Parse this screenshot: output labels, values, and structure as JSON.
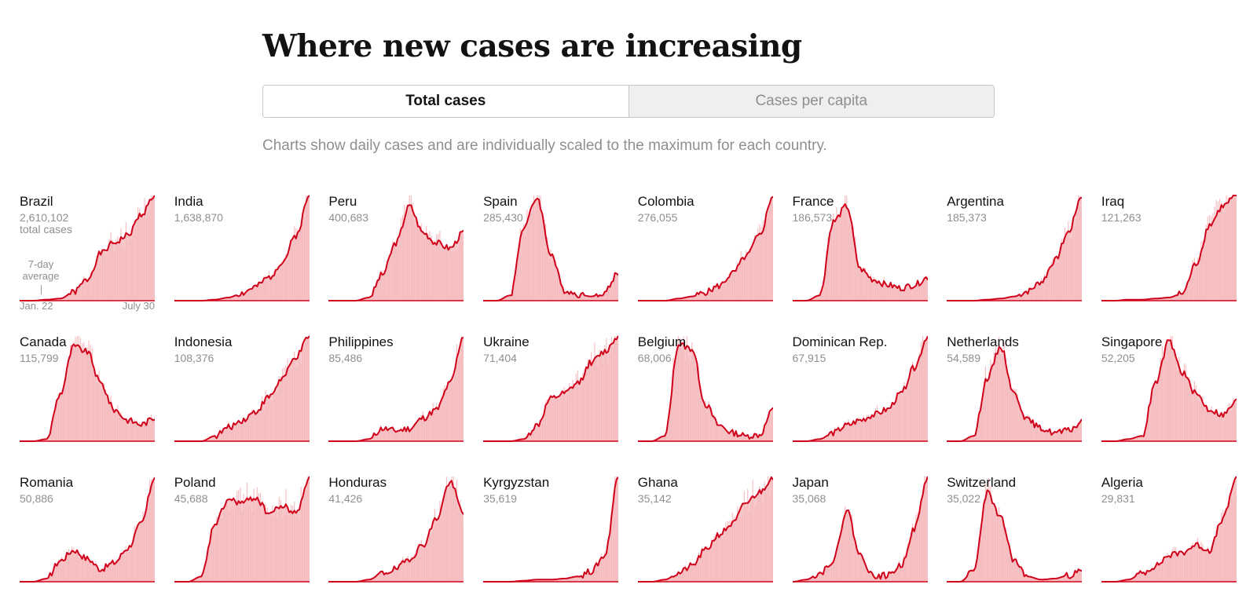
{
  "header": {
    "title": "Where new cases are increasing",
    "subtitle": "Charts show daily cases and are individually scaled to the maximum for each country."
  },
  "toggle": {
    "total_label": "Total cases",
    "per_capita_label": "Cases per capita"
  },
  "legend": {
    "total_cases_label": "total cases",
    "avg_label": "7-day average",
    "x_start": "Jan. 22",
    "x_end": "July 30"
  },
  "colors": {
    "line": "#d0021b",
    "fill": "#f4b6b8",
    "bar": "#f08d92"
  },
  "chart_data": {
    "type": "area",
    "title": "Where new cases are increasing",
    "description_units": "daily new cases, 7-day average, normalized 0-1 to each country's maximum",
    "x_range": [
      "Jan. 22",
      "July 30"
    ],
    "x": [
      0.0,
      0.1,
      0.2,
      0.3,
      0.4,
      0.5,
      0.6,
      0.7,
      0.8,
      0.9,
      1.0
    ],
    "series": [
      {
        "name": "Brazil",
        "total": "2,610,102",
        "values": [
          0,
          0,
          0.01,
          0.02,
          0.08,
          0.2,
          0.45,
          0.55,
          0.62,
          0.82,
          1.0
        ]
      },
      {
        "name": "India",
        "total": "1,638,870",
        "values": [
          0,
          0,
          0,
          0.01,
          0.03,
          0.07,
          0.13,
          0.22,
          0.37,
          0.62,
          1.0
        ]
      },
      {
        "name": "Peru",
        "total": "400,683",
        "values": [
          0,
          0,
          0,
          0.03,
          0.25,
          0.55,
          0.9,
          0.65,
          0.55,
          0.5,
          0.65
        ]
      },
      {
        "name": "Spain",
        "total": "285,430",
        "values": [
          0,
          0,
          0.05,
          0.7,
          0.98,
          0.45,
          0.1,
          0.06,
          0.04,
          0.08,
          0.27
        ]
      },
      {
        "name": "Colombia",
        "total": "276,055",
        "values": [
          0,
          0,
          0,
          0.02,
          0.04,
          0.08,
          0.14,
          0.26,
          0.42,
          0.62,
          1.0
        ]
      },
      {
        "name": "France",
        "total": "186,573",
        "values": [
          0,
          0,
          0.05,
          0.75,
          0.9,
          0.3,
          0.2,
          0.15,
          0.12,
          0.15,
          0.22
        ]
      },
      {
        "name": "Argentina",
        "total": "185,373",
        "values": [
          0,
          0,
          0,
          0.01,
          0.02,
          0.04,
          0.09,
          0.18,
          0.38,
          0.65,
          1.0
        ]
      },
      {
        "name": "Iraq",
        "total": "121,263",
        "values": [
          0,
          0,
          0.01,
          0.01,
          0.02,
          0.03,
          0.07,
          0.35,
          0.72,
          0.9,
          1.0
        ]
      },
      {
        "name": "Canada",
        "total": "115,799",
        "values": [
          0,
          0,
          0.02,
          0.45,
          0.9,
          0.85,
          0.55,
          0.3,
          0.2,
          0.16,
          0.22
        ]
      },
      {
        "name": "Indonesia",
        "total": "108,376",
        "values": [
          0,
          0,
          0,
          0.05,
          0.13,
          0.2,
          0.28,
          0.42,
          0.6,
          0.8,
          1.0
        ]
      },
      {
        "name": "Philippines",
        "total": "85,486",
        "values": [
          0,
          0,
          0,
          0.02,
          0.12,
          0.1,
          0.12,
          0.22,
          0.3,
          0.55,
          1.0
        ]
      },
      {
        "name": "Ukraine",
        "total": "71,404",
        "values": [
          0,
          0,
          0,
          0.02,
          0.15,
          0.4,
          0.45,
          0.55,
          0.75,
          0.85,
          1.0
        ]
      },
      {
        "name": "Belgium",
        "total": "68,006",
        "values": [
          0,
          0,
          0.05,
          0.92,
          0.88,
          0.35,
          0.15,
          0.08,
          0.05,
          0.06,
          0.3
        ]
      },
      {
        "name": "Dominican Rep.",
        "total": "67,915",
        "values": [
          0,
          0,
          0.02,
          0.08,
          0.15,
          0.2,
          0.25,
          0.3,
          0.45,
          0.7,
          1.0
        ]
      },
      {
        "name": "Netherlands",
        "total": "54,589",
        "values": [
          0,
          0,
          0.05,
          0.6,
          0.9,
          0.45,
          0.2,
          0.12,
          0.08,
          0.1,
          0.18
        ]
      },
      {
        "name": "Singapore",
        "total": "52,205",
        "values": [
          0,
          0,
          0.02,
          0.05,
          0.55,
          0.95,
          0.65,
          0.45,
          0.3,
          0.25,
          0.38
        ]
      },
      {
        "name": "Romania",
        "total": "50,886",
        "values": [
          0,
          0,
          0.03,
          0.2,
          0.3,
          0.22,
          0.12,
          0.18,
          0.32,
          0.55,
          1.0
        ]
      },
      {
        "name": "Poland",
        "total": "45,688",
        "values": [
          0,
          0,
          0.05,
          0.55,
          0.78,
          0.75,
          0.8,
          0.65,
          0.72,
          0.65,
          1.0
        ]
      },
      {
        "name": "Honduras",
        "total": "41,426",
        "values": [
          0,
          0,
          0,
          0.02,
          0.08,
          0.12,
          0.22,
          0.35,
          0.6,
          0.95,
          0.65
        ]
      },
      {
        "name": "Kyrgyzstan",
        "total": "35,619",
        "values": [
          0,
          0,
          0,
          0.01,
          0.02,
          0.02,
          0.03,
          0.05,
          0.1,
          0.25,
          1.0
        ]
      },
      {
        "name": "Ghana",
        "total": "35,142",
        "values": [
          0,
          0,
          0.02,
          0.08,
          0.15,
          0.3,
          0.45,
          0.55,
          0.75,
          0.85,
          1.0
        ]
      },
      {
        "name": "Japan",
        "total": "35,068",
        "values": [
          0,
          0.02,
          0.08,
          0.2,
          0.68,
          0.25,
          0.05,
          0.06,
          0.15,
          0.5,
          1.0
        ]
      },
      {
        "name": "Switzerland",
        "total": "35,022",
        "values": [
          0,
          0,
          0.1,
          0.85,
          0.6,
          0.2,
          0.05,
          0.02,
          0.03,
          0.06,
          0.1
        ]
      },
      {
        "name": "Algeria",
        "total": "29,831",
        "values": [
          0,
          0,
          0.02,
          0.08,
          0.15,
          0.25,
          0.28,
          0.35,
          0.3,
          0.6,
          1.0
        ]
      }
    ]
  }
}
